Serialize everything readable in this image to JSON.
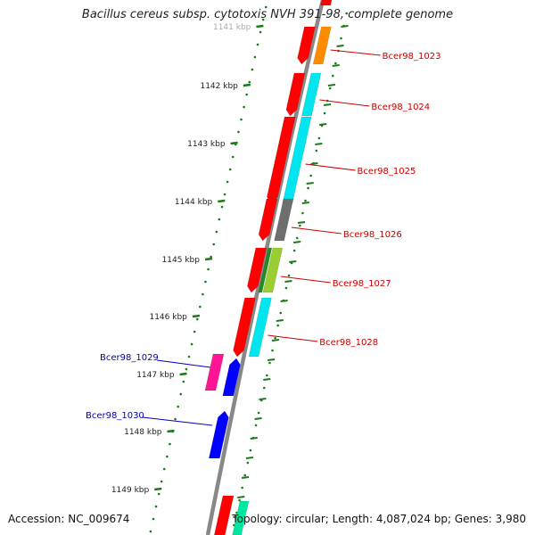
{
  "title": "Bacillus cereus subsp. cytotoxis NVH 391-98, complete genome",
  "accession": "Accession: NC_009674",
  "summary": "Topology: circular; Length: 4,087,024 bp; Genes: 3,980",
  "colors": {
    "backbone": "#888888",
    "ruler": "#1a7a1a",
    "forward_label": "#cc0000",
    "reverse_label": "#0000bb"
  },
  "ruler_ticks": [
    "1141 kbp",
    "1142 kbp",
    "1143 kbp",
    "1144 kbp",
    "1145 kbp",
    "1146 kbp",
    "1147 kbp",
    "1148 kbp",
    "1149 kbp"
  ],
  "genes": [
    {
      "label": "Bcer98_1023",
      "strand": "forward",
      "class_color": "#ff8c00"
    },
    {
      "label": "Bcer98_1024",
      "strand": "forward",
      "class_color": "#00e5ee"
    },
    {
      "label": "Bcer98_1025",
      "strand": "forward",
      "class_color": "#00e5ee"
    },
    {
      "label": "Bcer98_1026",
      "strand": "forward",
      "class_color": "#6e6e6e"
    },
    {
      "label": "Bcer98_1027",
      "strand": "forward",
      "class_color": "#9acd32"
    },
    {
      "label": "Bcer98_1028",
      "strand": "forward",
      "class_color": "#00e5ee"
    },
    {
      "label": "Bcer98_1029",
      "strand": "reverse",
      "class_color": "#ff1493"
    },
    {
      "label": "Bcer98_1030",
      "strand": "reverse",
      "class_color": ""
    }
  ]
}
